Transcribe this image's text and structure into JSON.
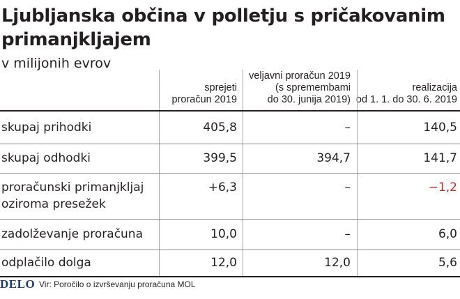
{
  "title": "Ljubljanska občina v polletju s pričakovanim primanjkljajem",
  "subtitle": "v milijonih evrov",
  "columns": [
    {
      "lines": [
        "sprejeti",
        "proračun 2019"
      ]
    },
    {
      "lines": [
        "veljavni proračun 2019",
        "(s spremembami",
        "do 30. junija 2019)"
      ]
    },
    {
      "lines": [
        "realizacija",
        "od 1. 1. do 30. 6. 2019"
      ]
    }
  ],
  "rows": [
    {
      "label": [
        "skupaj prihodki"
      ],
      "values": [
        "405,8",
        "–",
        "140,5"
      ]
    },
    {
      "label": [
        "skupaj odhodki"
      ],
      "values": [
        "399,5",
        "394,7",
        "141,7"
      ]
    },
    {
      "label": [
        "proračunski primanjkljaj",
        "oziroma presežek"
      ],
      "values": [
        "+6,3",
        "–",
        "−1,2"
      ]
    },
    {
      "label": [
        "zadolževanje proračuna"
      ],
      "values": [
        "10,0",
        "–",
        "6,0"
      ]
    },
    {
      "label": [
        "odplačilo dolga"
      ],
      "values": [
        "12,0",
        "12,0",
        "5,6"
      ]
    }
  ],
  "negative_color": "#b5322a",
  "footer": {
    "logo": "DELO",
    "source": "Vir: Poročilo o izvrševanju proračuna MOL"
  },
  "chart_data": {
    "type": "table",
    "title": "Ljubljanska občina v polletju s pričakovanim primanjkljajem",
    "subtitle": "v milijonih evrov",
    "columns": [
      "sprejeti proračun 2019",
      "veljavni proračun 2019 (s spremembami do 30. junija 2019)",
      "realizacija od 1. 1. do 30. 6. 2019"
    ],
    "rows": [
      {
        "name": "skupaj prihodki",
        "values": [
          405.8,
          null,
          140.5
        ]
      },
      {
        "name": "skupaj odhodki",
        "values": [
          399.5,
          394.7,
          141.7
        ]
      },
      {
        "name": "proračunski primanjkljaj oziroma presežek",
        "values": [
          6.3,
          null,
          -1.2
        ]
      },
      {
        "name": "zadolževanje proračuna",
        "values": [
          10.0,
          null,
          6.0
        ]
      },
      {
        "name": "odplačilo dolga",
        "values": [
          12.0,
          12.0,
          5.6
        ]
      }
    ]
  }
}
